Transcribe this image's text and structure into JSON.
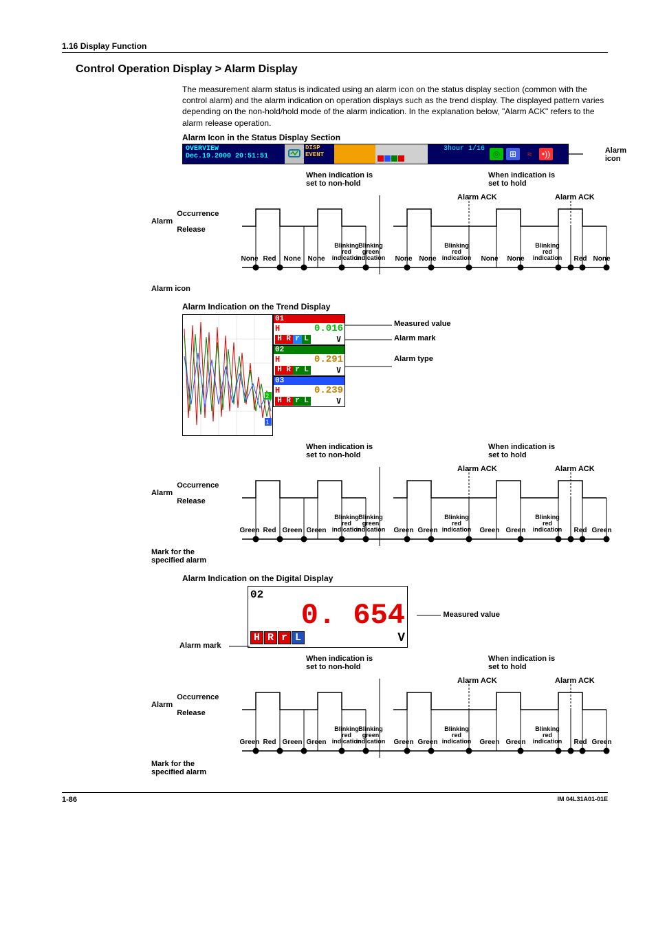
{
  "header": {
    "section": "1.16  Display Function"
  },
  "title": "Control Operation Display > Alarm Display",
  "intro": "The measurement alarm status is indicated using an alarm icon on the status display section (common with the control alarm) and the alarm indication on operation displays such as the trend display.  The displayed pattern varies depending on the non-hold/hold mode of the alarm indication.  In the explanation below, \"Alarm ACK\" refers to the alarm release operation.",
  "sub1": "Alarm Icon in the Status Display Section",
  "statusbar": {
    "overview": "OVERVIEW",
    "datetime": "Dec.19.2000 20:51:51",
    "disp": "DISP",
    "event": "EVENT",
    "mode": "3hour 1/16",
    "pointer": "Alarm\nicon"
  },
  "timing1": {
    "hdr_nonhold": "When indication is\nset to non-hold",
    "hdr_hold": "When indication is\nset to hold",
    "ack": "Alarm ACK",
    "left_alarm": "Alarm",
    "left_occ": "Occurrence",
    "left_rel": "Release",
    "bottom_label": "Alarm icon",
    "states_nonhold": [
      "None",
      "Red",
      "None",
      "None"
    ],
    "states_blink": [
      "Blinking\nred\nindication",
      "Blinking\ngreen\nindication"
    ],
    "states_hold": [
      "None",
      "None",
      "",
      "Red",
      "None"
    ],
    "states_hold_blink": "Blinking\nred\nindication"
  },
  "sub2": "Alarm Indication on the Trend Display",
  "trend": {
    "channels": [
      {
        "id": "01",
        "head_color": "#e00000",
        "h_color": "#e00000",
        "val": "0.016",
        "val_color": "#00c000",
        "marks": [
          {
            "t": "H",
            "c": "#e00000"
          },
          {
            "t": "R",
            "c": "#e00000"
          },
          {
            "t": "r",
            "c": "#2080ff"
          },
          {
            "t": "L",
            "c": "#008000"
          }
        ]
      },
      {
        "id": "02",
        "head_color": "#008000",
        "h_color": "#e00000",
        "val": "0.291",
        "val_color": "#c08000",
        "marks": [
          {
            "t": "H",
            "c": "#e00000"
          },
          {
            "t": "R",
            "c": "#e00000"
          },
          {
            "t": "r",
            "c": "#008000"
          },
          {
            "t": "L",
            "c": "#008000"
          }
        ]
      },
      {
        "id": "03",
        "head_color": "#2050ff",
        "h_color": "#e00000",
        "val": "0.239",
        "val_color": "#c08000",
        "marks": [
          {
            "t": "H",
            "c": "#e00000"
          },
          {
            "t": "R",
            "c": "#e00000"
          },
          {
            "t": "r",
            "c": "#008000"
          },
          {
            "t": "L",
            "c": "#008000"
          }
        ]
      }
    ],
    "callouts": [
      "Measured value",
      "Alarm mark",
      "Alarm type"
    ],
    "trace_colors": [
      "#e00000",
      "#008000",
      "#2050ff",
      "#ff8000"
    ]
  },
  "timing2": {
    "bottom_label": "Mark for the\nspecified alarm",
    "states_nonhold": [
      "Green",
      "Red",
      "Green",
      "Green"
    ],
    "states_hold": [
      "Green",
      "Green",
      "",
      "Red",
      "Green"
    ]
  },
  "sub3": "Alarm Indication on the Digital Display",
  "digital": {
    "ch": "02",
    "val": "0. 654",
    "unit": "V",
    "marks": [
      {
        "t": "H",
        "c": "#e00000"
      },
      {
        "t": "R",
        "c": "#e00000"
      },
      {
        "t": "r",
        "c": "#e00000"
      },
      {
        "t": "L",
        "c": "#2050c0"
      }
    ],
    "left": "Alarm mark",
    "right": "Measured value"
  },
  "timing3": {
    "bottom_label": "Mark for the\nspecified alarm",
    "states_nonhold": [
      "Green",
      "Red",
      "Green",
      "Green"
    ],
    "states_hold": [
      "Green",
      "Green",
      "",
      "Red",
      "Green"
    ]
  },
  "footer": {
    "page": "1-86",
    "doc": "IM 04L31A01-01E"
  }
}
